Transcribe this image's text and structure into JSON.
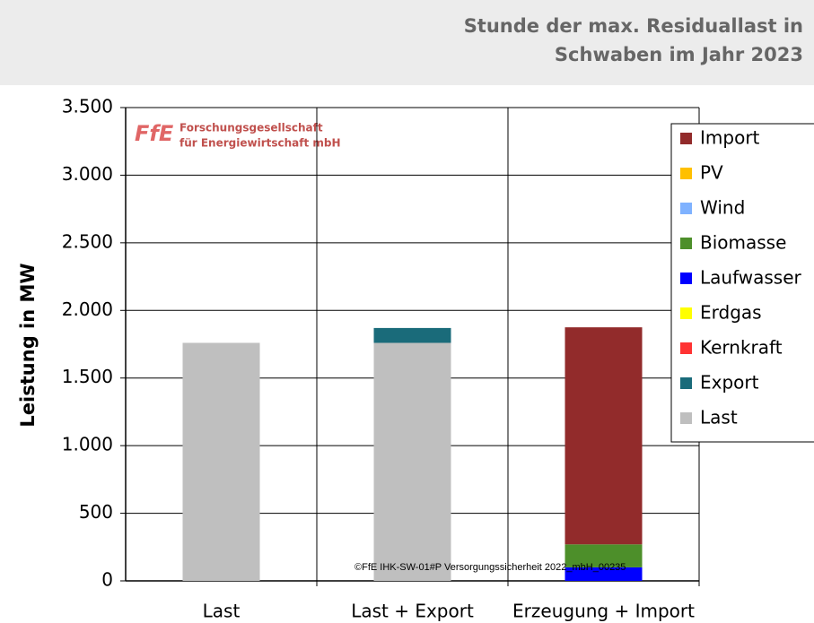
{
  "chart_data": {
    "type": "stacked_bar",
    "title": [
      "Stunde der max. Residuallast in",
      "Schwaben im Jahr 2023"
    ],
    "y_label": "Leistung in MW",
    "logo": {
      "mark": "FfE",
      "lines": [
        "Forschungsgesellschaft",
        "für Energiewirtschaft mbH"
      ]
    },
    "footnote": "©FfE IHK-SW-01#P Versorgungssicherheit 2022_mbH_00235",
    "categories": [
      "Last",
      "Last + Export",
      "Erzeugung + Import"
    ],
    "series": [
      {
        "name": "Import",
        "color": "#922b2b",
        "values": [
          0,
          0,
          1605
        ]
      },
      {
        "name": "PV",
        "color": "#ffc000",
        "values": [
          0,
          0,
          0
        ]
      },
      {
        "name": "Wind",
        "color": "#7fb2ff",
        "values": [
          0,
          0,
          0
        ]
      },
      {
        "name": "Biomasse",
        "color": "#4d8f2a",
        "values": [
          0,
          0,
          170
        ]
      },
      {
        "name": "Laufwasser",
        "color": "#0000ff",
        "values": [
          0,
          0,
          100
        ]
      },
      {
        "name": "Erdgas",
        "color": "#ffff00",
        "values": [
          0,
          0,
          0
        ]
      },
      {
        "name": "Kernkraft",
        "color": "#ff3333",
        "values": [
          0,
          0,
          0
        ]
      },
      {
        "name": "Export",
        "color": "#1a6b7a",
        "values": [
          0,
          110,
          0
        ]
      },
      {
        "name": "Last",
        "color": "#bfbfbf",
        "values": [
          1760,
          1760,
          0
        ]
      }
    ],
    "ylim": [
      0,
      3500
    ],
    "yticks": [
      0,
      500,
      {
        "value": 1000,
        "label": "1.000"
      },
      {
        "value": 1500,
        "label": "1.500"
      },
      {
        "value": 2000,
        "label": "2.000"
      },
      {
        "value": 2500,
        "label": "2.500"
      },
      {
        "value": 3000,
        "label": "3.000"
      },
      {
        "value": 3500,
        "label": "3.500"
      }
    ],
    "grid": true,
    "legend": "right"
  }
}
